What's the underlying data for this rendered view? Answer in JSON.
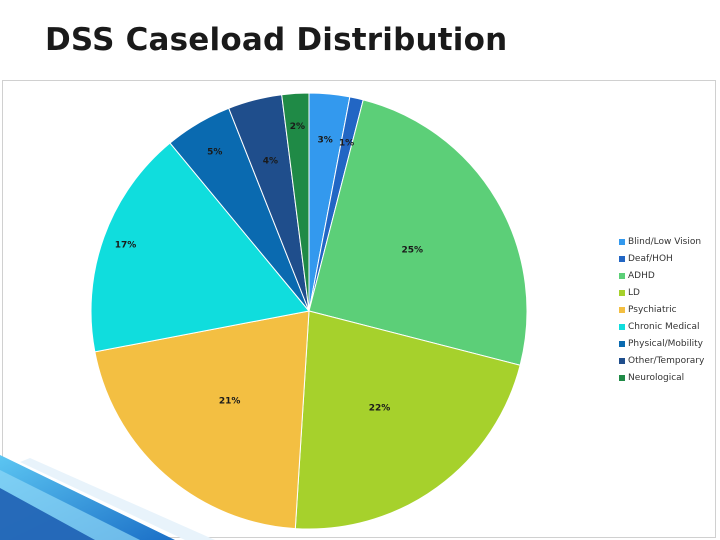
{
  "slide": {
    "title": "DSS Caseload Distribution"
  },
  "chart_data": {
    "type": "pie",
    "title": "DSS Caseload Distribution",
    "legend_position": "right",
    "slices": [
      {
        "label": "Blind/Low Vision",
        "value": 3,
        "display": "3%",
        "color": "#3399ee"
      },
      {
        "label": "Deaf/HOH",
        "value": 1,
        "display": "1%",
        "color": "#2266c4"
      },
      {
        "label": "ADHD",
        "value": 25,
        "display": "25%",
        "color": "#5ccf78"
      },
      {
        "label": "LD",
        "value": 22,
        "display": "22%",
        "color": "#a6d12c"
      },
      {
        "label": "Psychiatric",
        "value": 21,
        "display": "21%",
        "color": "#f3bf42"
      },
      {
        "label": "Chronic Medical",
        "value": 17,
        "display": "17%",
        "color": "#10dddd"
      },
      {
        "label": "Physical/Mobility",
        "value": 5,
        "display": "5%",
        "color": "#0a6ab0"
      },
      {
        "label": "Other/Temporary",
        "value": 4,
        "display": "4%",
        "color": "#1f4e8c"
      },
      {
        "label": "Neurological",
        "value": 2,
        "display": "2%",
        "color": "#1f8a46"
      }
    ]
  }
}
